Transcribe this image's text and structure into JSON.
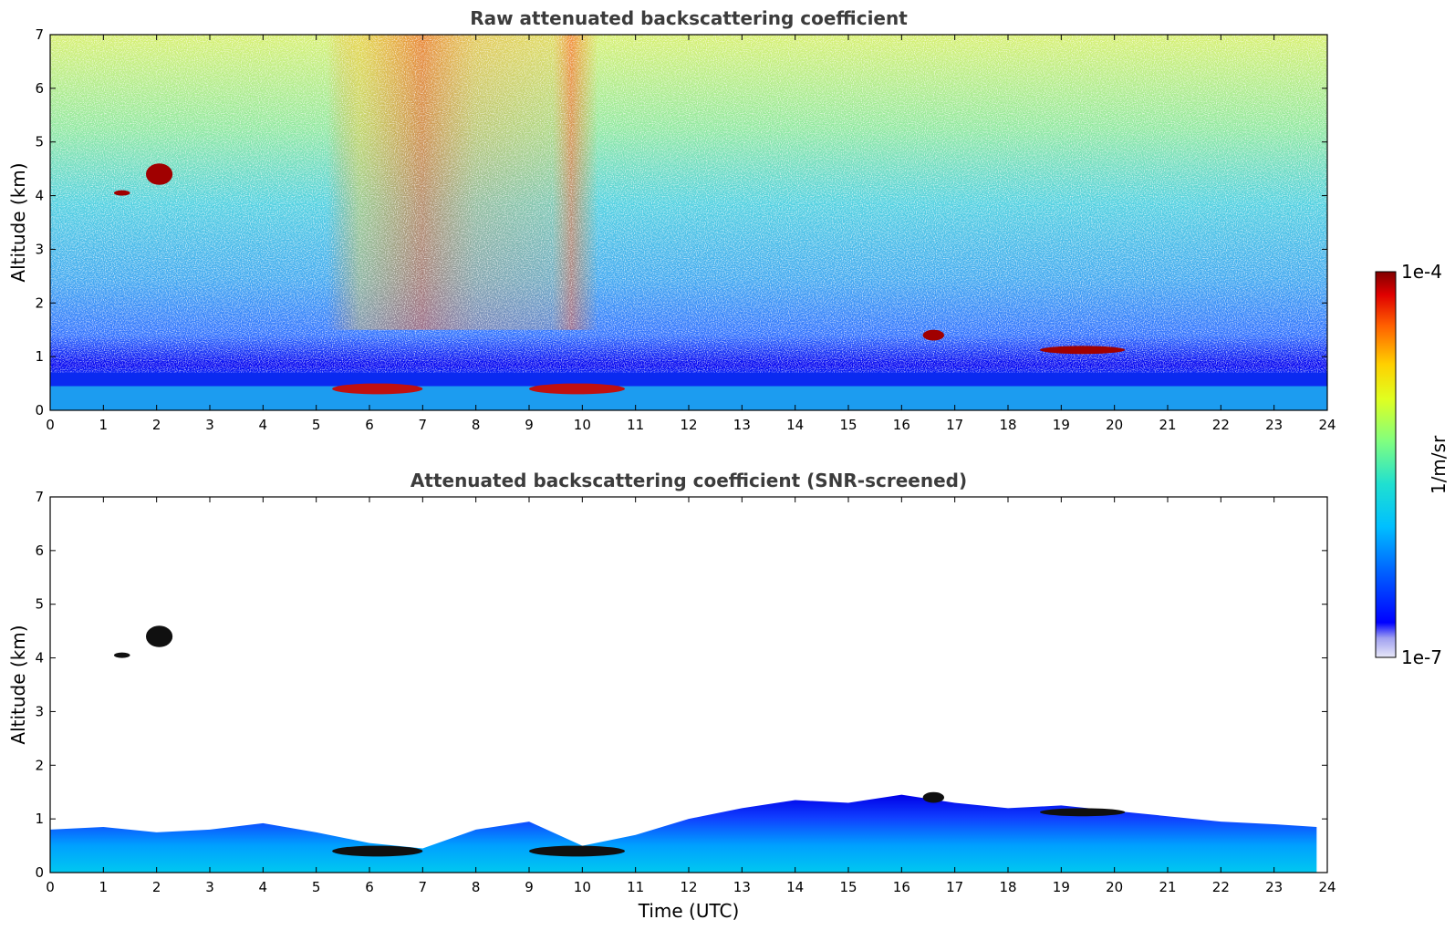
{
  "chart_data": [
    {
      "type": "heatmap",
      "title": "Raw attenuated backscattering coefficient",
      "xlabel": "",
      "ylabel": "Altitude (km)",
      "xlim": [
        0,
        24
      ],
      "ylim": [
        0,
        7
      ],
      "x_ticks": [
        "0",
        "1",
        "2",
        "3",
        "4",
        "5",
        "6",
        "7",
        "8",
        "9",
        "10",
        "11",
        "12",
        "13",
        "14",
        "15",
        "16",
        "17",
        "18",
        "19",
        "20",
        "21",
        "22",
        "23",
        "24"
      ],
      "y_ticks": [
        "0",
        "1",
        "2",
        "3",
        "4",
        "5",
        "6",
        "7"
      ],
      "features": [
        {
          "name": "boundary-layer",
          "x": [
            0,
            24
          ],
          "y": [
            0,
            0.7
          ]
        },
        {
          "name": "aerosol-band",
          "x": [
            5.3,
            7.0
          ],
          "y": [
            0.3,
            0.5
          ]
        },
        {
          "name": "aerosol-band",
          "x": [
            9.0,
            10.8
          ],
          "y": [
            0.3,
            0.5
          ]
        },
        {
          "name": "cloud",
          "x": [
            1.8,
            2.3
          ],
          "y": [
            4.2,
            4.6
          ]
        },
        {
          "name": "cloud",
          "x": [
            1.2,
            1.5
          ],
          "y": [
            4.0,
            4.1
          ]
        },
        {
          "name": "cloud",
          "x": [
            16.4,
            16.8
          ],
          "y": [
            1.3,
            1.5
          ]
        },
        {
          "name": "cloud",
          "x": [
            18.6,
            20.2
          ],
          "y": [
            1.05,
            1.2
          ]
        },
        {
          "name": "enhanced-noise-region",
          "x": [
            5.2,
            10.3
          ],
          "y": [
            1.5,
            7
          ]
        }
      ]
    },
    {
      "type": "heatmap",
      "title": "Attenuated backscattering coefficient (SNR-screened)",
      "xlabel": "Time (UTC)",
      "ylabel": "Altitude (km)",
      "xlim": [
        0,
        24
      ],
      "ylim": [
        0,
        7
      ],
      "x_ticks": [
        "0",
        "1",
        "2",
        "3",
        "4",
        "5",
        "6",
        "7",
        "8",
        "9",
        "10",
        "11",
        "12",
        "13",
        "14",
        "15",
        "16",
        "17",
        "18",
        "19",
        "20",
        "21",
        "22",
        "23",
        "24"
      ],
      "y_ticks": [
        "0",
        "1",
        "2",
        "3",
        "4",
        "5",
        "6",
        "7"
      ],
      "layer_top_km": [
        [
          0,
          0.8
        ],
        [
          1,
          0.85
        ],
        [
          2,
          0.75
        ],
        [
          3,
          0.8
        ],
        [
          4,
          0.92
        ],
        [
          5,
          0.75
        ],
        [
          6,
          0.55
        ],
        [
          7,
          0.45
        ],
        [
          8,
          0.8
        ],
        [
          9,
          0.95
        ],
        [
          10,
          0.5
        ],
        [
          11,
          0.7
        ],
        [
          12,
          1.0
        ],
        [
          13,
          1.2
        ],
        [
          14,
          1.35
        ],
        [
          15,
          1.3
        ],
        [
          16,
          1.45
        ],
        [
          17,
          1.3
        ],
        [
          18,
          1.2
        ],
        [
          19,
          1.25
        ],
        [
          20,
          1.15
        ],
        [
          21,
          1.05
        ],
        [
          22,
          0.95
        ],
        [
          23,
          0.9
        ],
        [
          23.8,
          0.85
        ]
      ]
    }
  ],
  "colorbar": {
    "max_label": "1e-4",
    "min_label": "1e-7",
    "unit_label": "1/m/sr",
    "scale": "log",
    "range": [
      1e-07,
      0.0001
    ]
  }
}
